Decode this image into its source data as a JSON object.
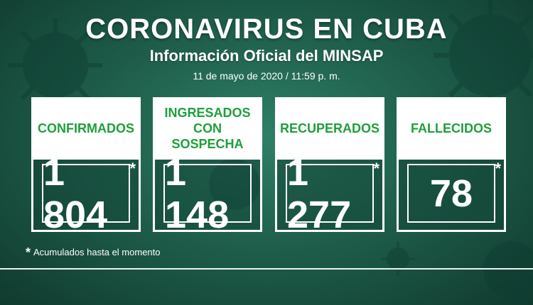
{
  "header": {
    "title": "CORONAVIRUS EN CUBA",
    "subtitle": "Información Oficial del MINSAP",
    "date": "11 de mayo de 2020 / 11:59 p. m."
  },
  "cards": [
    {
      "label": "CONFIRMADOS",
      "value": "1 804",
      "asterisk": "*"
    },
    {
      "label": "INGRESADOS CON SOSPECHA",
      "value": "1 148",
      "asterisk": ""
    },
    {
      "label": "RECUPERADOS",
      "value": "1 277",
      "asterisk": "*"
    },
    {
      "label": "FALLECIDOS",
      "value": "78",
      "asterisk": "*"
    }
  ],
  "footnote": {
    "star": "*",
    "text": "Acumulados hasta el momento"
  },
  "colors": {
    "accent_green": "#1e9f3b",
    "background": "#1f5f4b",
    "text": "#ffffff"
  },
  "icons": [
    "virus-icon"
  ]
}
